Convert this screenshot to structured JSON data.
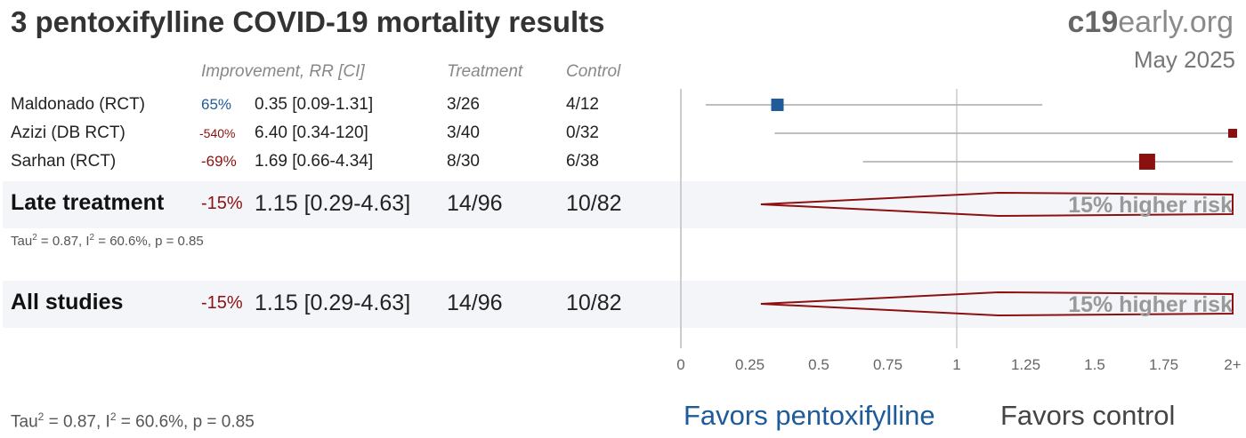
{
  "title": "3 pentoxifylline COVID-19 mortality results",
  "brand": {
    "bold": "c19",
    "rest": "early.org"
  },
  "date": "May 2025",
  "headers": {
    "improvement": "Improvement, RR [CI]",
    "treatment": "Treatment",
    "control": "Control"
  },
  "studies": [
    {
      "name": "Maldonado (RCT)",
      "improvement": "65%",
      "rr": "0.35 [0.09-1.31]",
      "treatment": "3/26",
      "control": "4/12"
    },
    {
      "name": "Azizi (DB RCT)",
      "improvement": "-540%",
      "rr": "6.40 [0.34-120]",
      "treatment": "3/40",
      "control": "0/32"
    },
    {
      "name": "Sarhan (RCT)",
      "improvement": "-69%",
      "rr": "1.69 [0.66-4.34]",
      "treatment": "8/30",
      "control": "6/38"
    }
  ],
  "summaries": [
    {
      "name": "Late treatment",
      "improvement": "-15%",
      "rr": "1.15 [0.29-4.63]",
      "treatment": "14/96",
      "control": "10/82",
      "risk_label": "15% higher risk",
      "stats": {
        "tau_prefix": "Tau",
        "sup": "2",
        "mid": " = 0.87, I",
        "rest": " = 60.6%, p = 0.85"
      }
    },
    {
      "name": "All studies",
      "improvement": "-15%",
      "rr": "1.15 [0.29-4.63]",
      "treatment": "14/96",
      "control": "10/82",
      "risk_label": "15% higher risk"
    }
  ],
  "footer_stats": {
    "tau_prefix": "Tau",
    "sup": "2",
    "mid": " = 0.87, I",
    "rest": " = 60.6%, p = 0.85"
  },
  "favors": {
    "left": "Favors pentoxifylline",
    "right": "Favors control"
  },
  "colors": {
    "positive": "#1f5a99",
    "negative": "#8b1010",
    "axis": "#cccccc"
  },
  "chart_data": {
    "type": "forest",
    "xlim": [
      0,
      2
    ],
    "x_ticks": [
      "0",
      "0.25",
      "0.5",
      "0.75",
      "1",
      "1.25",
      "1.5",
      "1.75",
      "2+"
    ],
    "reference_line": 1,
    "studies": [
      {
        "name": "Maldonado (RCT)",
        "rr": 0.35,
        "ci": [
          0.09,
          1.31
        ],
        "color": "#1f5a99",
        "weight": 0.6
      },
      {
        "name": "Azizi (DB RCT)",
        "rr": 6.4,
        "ci": [
          0.34,
          120
        ],
        "color": "#8b1010",
        "weight": 0.2
      },
      {
        "name": "Sarhan (RCT)",
        "rr": 1.69,
        "ci": [
          0.66,
          4.34
        ],
        "color": "#8b1010",
        "weight": 1.0
      }
    ],
    "summaries": [
      {
        "name": "Late treatment",
        "rr": 1.15,
        "ci": [
          0.29,
          4.63
        ]
      },
      {
        "name": "All studies",
        "rr": 1.15,
        "ci": [
          0.29,
          4.63
        ]
      }
    ]
  }
}
